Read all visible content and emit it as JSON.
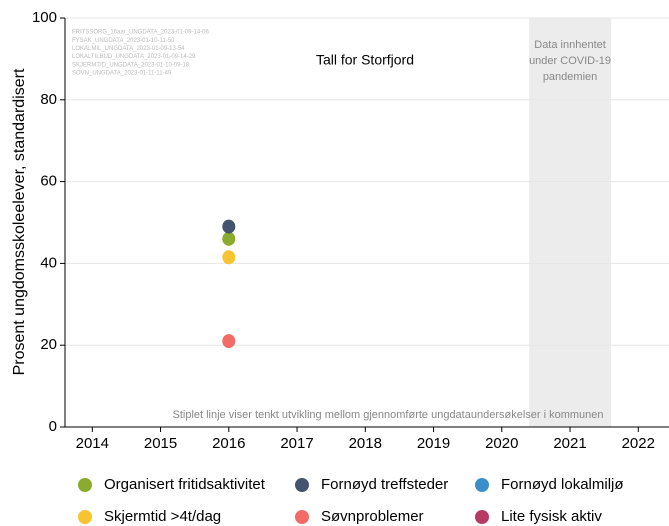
{
  "chart_data": {
    "type": "scatter",
    "title": "Tall for Storfjord",
    "y_label": "Prosent ungdomsskoleelever, standardisert",
    "sources": [
      "FRITSSORG_16aar_UNGDATA_2023-01-09-14-06",
      "FYSAK_UNGDATA_2023-01-10-11-50",
      "LOKALMIL_UNGDATA_2023-01-09-13-54",
      "LOKALTILBUD_UNGDATA_2023-01-09-14-29",
      "SKJERMTID_UNGDATA_2023-01-10-09-18",
      "SOVN_UNGDATA_2023-01-11-11-49"
    ],
    "band": {
      "range": [
        2020.4,
        2021.6
      ],
      "label": [
        "Data innhentet",
        "under COVID-19",
        "pandemien"
      ]
    },
    "footnote": "Stiplet linje viser tenkt utvikling mellom gjennomførte ungdataundersøkelser i kommunen",
    "x": [
      2016
    ],
    "series": [
      {
        "name": "Organisert fritidsaktivitet",
        "color": "#8aab2e",
        "values": [
          46
        ]
      },
      {
        "name": "Fornøyd treffsteder",
        "color": "#44546e",
        "values": [
          49
        ]
      },
      {
        "name": "Fornøyd lokalmiljø",
        "color": "#3a8fc8",
        "values": [
          null
        ]
      },
      {
        "name": "Skjermtid >4t/dag",
        "color": "#f6c431",
        "values": [
          41.5
        ]
      },
      {
        "name": "Søvnproblemer",
        "color": "#f36b66",
        "values": [
          21
        ]
      },
      {
        "name": "Lite fysisk aktiv",
        "color": "#b83a63",
        "values": [
          null
        ]
      }
    ],
    "xlim": [
      2013.6,
      2022.45
    ],
    "xticks": [
      2014,
      2015,
      2016,
      2017,
      2018,
      2019,
      2020,
      2021,
      2022
    ],
    "ylim": [
      0,
      100
    ],
    "yticks": [
      0,
      20,
      40,
      60,
      80,
      100
    ],
    "grid": true
  }
}
